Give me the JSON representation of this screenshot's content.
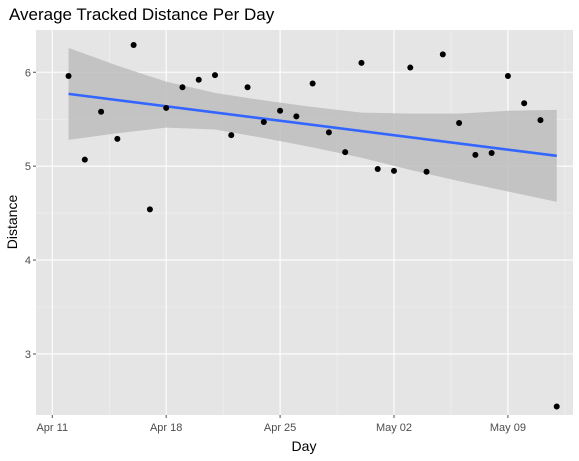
{
  "chart_data": {
    "type": "scatter",
    "title": "Average Tracked Distance Per Day",
    "xlabel": "Day",
    "ylabel": "Distance",
    "x_ticks": [
      {
        "date": "2021-04-11",
        "label": "Apr 11"
      },
      {
        "date": "2021-04-18",
        "label": "Apr 18"
      },
      {
        "date": "2021-04-25",
        "label": "Apr 25"
      },
      {
        "date": "2021-05-02",
        "label": "May 02"
      },
      {
        "date": "2021-05-09",
        "label": "May 09"
      }
    ],
    "y_ticks": [
      3,
      4,
      5,
      6
    ],
    "xlim": [
      "2021-04-10",
      "2021-05-13"
    ],
    "ylim": [
      2.35,
      6.45
    ],
    "grid": true,
    "points": [
      {
        "x": "2021-04-12",
        "y": 5.96
      },
      {
        "x": "2021-04-13",
        "y": 5.07
      },
      {
        "x": "2021-04-14",
        "y": 5.58
      },
      {
        "x": "2021-04-15",
        "y": 5.29
      },
      {
        "x": "2021-04-16",
        "y": 6.29
      },
      {
        "x": "2021-04-17",
        "y": 4.54
      },
      {
        "x": "2021-04-18",
        "y": 5.62
      },
      {
        "x": "2021-04-19",
        "y": 5.84
      },
      {
        "x": "2021-04-20",
        "y": 5.92
      },
      {
        "x": "2021-04-21",
        "y": 5.97
      },
      {
        "x": "2021-04-22",
        "y": 5.33
      },
      {
        "x": "2021-04-23",
        "y": 5.84
      },
      {
        "x": "2021-04-24",
        "y": 5.47
      },
      {
        "x": "2021-04-25",
        "y": 5.59
      },
      {
        "x": "2021-04-26",
        "y": 5.53
      },
      {
        "x": "2021-04-27",
        "y": 5.88
      },
      {
        "x": "2021-04-28",
        "y": 5.36
      },
      {
        "x": "2021-04-29",
        "y": 5.15
      },
      {
        "x": "2021-04-30",
        "y": 6.1
      },
      {
        "x": "2021-05-01",
        "y": 4.97
      },
      {
        "x": "2021-05-02",
        "y": 4.95
      },
      {
        "x": "2021-05-03",
        "y": 6.05
      },
      {
        "x": "2021-05-04",
        "y": 4.94
      },
      {
        "x": "2021-05-05",
        "y": 6.19
      },
      {
        "x": "2021-05-06",
        "y": 5.46
      },
      {
        "x": "2021-05-07",
        "y": 5.12
      },
      {
        "x": "2021-05-08",
        "y": 5.14
      },
      {
        "x": "2021-05-09",
        "y": 5.96
      },
      {
        "x": "2021-05-10",
        "y": 5.67
      },
      {
        "x": "2021-05-11",
        "y": 5.49
      },
      {
        "x": "2021-05-12",
        "y": 2.44
      }
    ],
    "trend_line": {
      "start": {
        "x": "2021-04-12",
        "y": 5.77
      },
      "end": {
        "x": "2021-05-12",
        "y": 5.11
      }
    },
    "confidence_band": [
      {
        "x": "2021-04-12",
        "lower": 5.28,
        "upper": 6.26
      },
      {
        "x": "2021-04-15",
        "lower": 5.35,
        "upper": 6.07
      },
      {
        "x": "2021-04-18",
        "lower": 5.41,
        "upper": 5.9
      },
      {
        "x": "2021-04-21",
        "lower": 5.39,
        "upper": 5.78
      },
      {
        "x": "2021-04-24",
        "lower": 5.3,
        "upper": 5.7
      },
      {
        "x": "2021-04-27",
        "lower": 5.2,
        "upper": 5.63
      },
      {
        "x": "2021-04-30",
        "lower": 5.09,
        "upper": 5.57
      },
      {
        "x": "2021-05-03",
        "lower": 4.96,
        "upper": 5.56
      },
      {
        "x": "2021-05-06",
        "lower": 4.84,
        "upper": 5.56
      },
      {
        "x": "2021-05-09",
        "lower": 4.73,
        "upper": 5.59
      },
      {
        "x": "2021-05-12",
        "lower": 4.62,
        "upper": 5.6
      }
    ],
    "colors": {
      "panel": "#e5e5e5",
      "grid_major": "#ffffff",
      "grid_minor": "#f2f2f2",
      "point": "#000000",
      "trend": "#3366ff",
      "band": "#bdbdbd",
      "tick": "#4d4d4d"
    }
  }
}
